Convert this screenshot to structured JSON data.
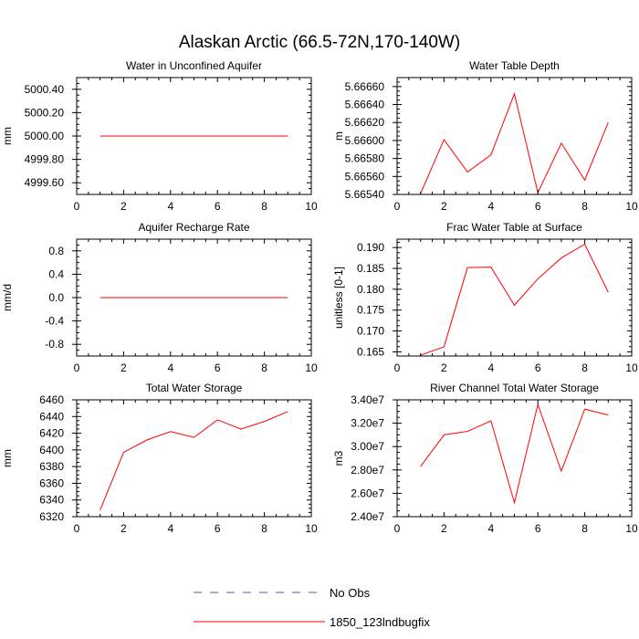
{
  "figure": {
    "title": "Alaskan Arctic (66.5-72N,170-140W)",
    "legend": [
      {
        "label": "No Obs",
        "style": "dashed",
        "color": "#5a5ab4"
      },
      {
        "label": "1850_123lndbugfix",
        "style": "solid",
        "color": "#ff0000"
      }
    ]
  },
  "chart_data": [
    {
      "type": "line",
      "title": "Water in Unconfined Aquifer",
      "ylabel": "mm",
      "xlim": [
        0,
        10
      ],
      "ylim": [
        4999.5,
        5000.5
      ],
      "xticks": [
        "0",
        "2",
        "4",
        "6",
        "8",
        "10"
      ],
      "yticks": [
        {
          "v": 4999.6,
          "label": "4999.60"
        },
        {
          "v": 4999.8,
          "label": "4999.80"
        },
        {
          "v": 5000.0,
          "label": "5000.00"
        },
        {
          "v": 5000.2,
          "label": "5000.20"
        },
        {
          "v": 5000.4,
          "label": "5000.40"
        }
      ],
      "series": [
        {
          "color": "#ff0000",
          "x": [
            1,
            2,
            3,
            4,
            5,
            6,
            7,
            8,
            9
          ],
          "y": [
            5000,
            5000,
            5000,
            5000,
            5000,
            5000,
            5000,
            5000,
            5000
          ]
        }
      ]
    },
    {
      "type": "line",
      "title": "Water Table Depth",
      "ylabel": "m",
      "xlim": [
        0,
        10
      ],
      "ylim": [
        5.6654,
        5.6667
      ],
      "xticks": [
        "0",
        "2",
        "4",
        "6",
        "8",
        "10"
      ],
      "yticks": [
        {
          "v": 5.6654,
          "label": "5.66540"
        },
        {
          "v": 5.6656,
          "label": "5.66560"
        },
        {
          "v": 5.6658,
          "label": "5.66580"
        },
        {
          "v": 5.666,
          "label": "5.66600"
        },
        {
          "v": 5.6662,
          "label": "5.66620"
        },
        {
          "v": 5.6664,
          "label": "5.66640"
        },
        {
          "v": 5.6666,
          "label": "5.66660"
        }
      ],
      "series": [
        {
          "color": "#ff0000",
          "x": [
            1,
            2,
            3,
            4,
            5,
            6,
            7,
            8,
            9
          ],
          "y": [
            5.66541,
            5.66601,
            5.66565,
            5.66584,
            5.66652,
            5.66542,
            5.66597,
            5.66556,
            5.6662
          ]
        }
      ]
    },
    {
      "type": "line",
      "title": "Aquifer Recharge Rate",
      "ylabel": "mm/d",
      "xlim": [
        0,
        10
      ],
      "ylim": [
        -1.0,
        1.0
      ],
      "xticks": [
        "0",
        "2",
        "4",
        "6",
        "8",
        "10"
      ],
      "yticks": [
        {
          "v": -0.8,
          "label": "-0.8"
        },
        {
          "v": -0.4,
          "label": "-0.4"
        },
        {
          "v": 0.0,
          "label": "0.0"
        },
        {
          "v": 0.4,
          "label": "0.4"
        },
        {
          "v": 0.8,
          "label": "0.8"
        }
      ],
      "series": [
        {
          "color": "#ff0000",
          "x": [
            1,
            2,
            3,
            4,
            5,
            6,
            7,
            8,
            9
          ],
          "y": [
            0,
            0,
            0,
            0,
            0,
            0,
            0,
            0,
            0
          ]
        }
      ]
    },
    {
      "type": "line",
      "title": "Frac Water Table at Surface",
      "ylabel": "unitless [0-1]",
      "xlim": [
        0,
        10
      ],
      "ylim": [
        0.164,
        0.192
      ],
      "xticks": [
        "0",
        "2",
        "4",
        "6",
        "8",
        "10"
      ],
      "yticks": [
        {
          "v": 0.165,
          "label": "0.165"
        },
        {
          "v": 0.17,
          "label": "0.170"
        },
        {
          "v": 0.175,
          "label": "0.175"
        },
        {
          "v": 0.18,
          "label": "0.180"
        },
        {
          "v": 0.185,
          "label": "0.185"
        },
        {
          "v": 0.19,
          "label": "0.190"
        }
      ],
      "series": [
        {
          "color": "#ff0000",
          "x": [
            1,
            2,
            3,
            4,
            5,
            6,
            7,
            8,
            9
          ],
          "y": [
            0.1642,
            0.1662,
            0.1852,
            0.1853,
            0.1762,
            0.1825,
            0.1875,
            0.1908,
            0.1793
          ]
        }
      ]
    },
    {
      "type": "line",
      "title": "Total Water Storage",
      "ylabel": "mm",
      "xlim": [
        0,
        10
      ],
      "ylim": [
        6320,
        6460
      ],
      "xticks": [
        "0",
        "2",
        "4",
        "6",
        "8",
        "10"
      ],
      "yticks": [
        {
          "v": 6320,
          "label": "6320"
        },
        {
          "v": 6340,
          "label": "6340"
        },
        {
          "v": 6360,
          "label": "6360"
        },
        {
          "v": 6380,
          "label": "6380"
        },
        {
          "v": 6400,
          "label": "6400"
        },
        {
          "v": 6420,
          "label": "6420"
        },
        {
          "v": 6440,
          "label": "6440"
        },
        {
          "v": 6460,
          "label": "6460"
        }
      ],
      "series": [
        {
          "color": "#ff0000",
          "x": [
            1,
            2,
            3,
            4,
            5,
            6,
            7,
            8,
            9
          ],
          "y": [
            6328,
            6397,
            6412,
            6422,
            6415,
            6436,
            6425,
            6434,
            6446
          ]
        }
      ]
    },
    {
      "type": "line",
      "title": "River Channel Total Water Storage",
      "ylabel": "m3",
      "xlim": [
        0,
        10
      ],
      "ylim": [
        24000000,
        34000000
      ],
      "xticks": [
        "0",
        "2",
        "4",
        "6",
        "8",
        "10"
      ],
      "yticks": [
        {
          "v": 24000000,
          "label": "2.40e7"
        },
        {
          "v": 26000000,
          "label": "2.60e7"
        },
        {
          "v": 28000000,
          "label": "2.80e7"
        },
        {
          "v": 30000000,
          "label": "3.00e7"
        },
        {
          "v": 32000000,
          "label": "3.20e7"
        },
        {
          "v": 34000000,
          "label": "3.40e7"
        }
      ],
      "series": [
        {
          "color": "#ff0000",
          "x": [
            1,
            2,
            3,
            4,
            5,
            6,
            7,
            8,
            9
          ],
          "y": [
            28300000,
            31000000,
            31300000,
            32200000,
            25200000,
            33600000,
            27900000,
            33200000,
            32700000
          ]
        }
      ]
    }
  ]
}
